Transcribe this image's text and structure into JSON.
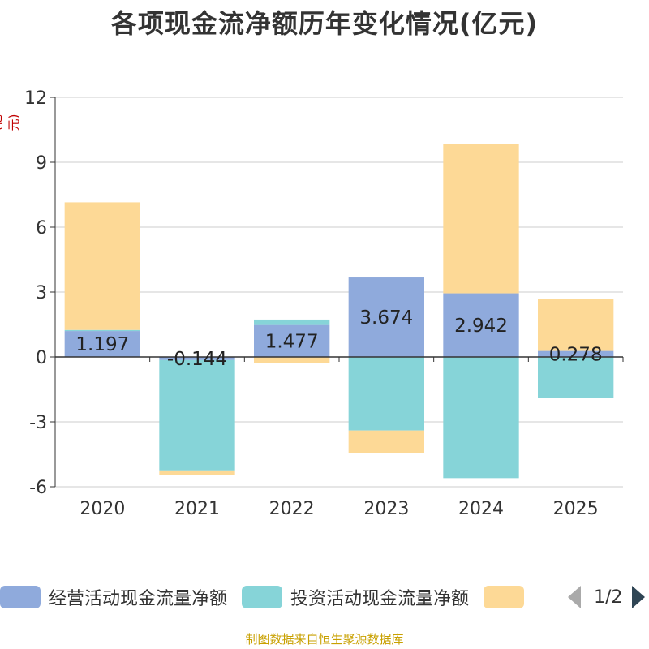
{
  "title": "各项现金流净额历年变化情况(亿元)",
  "y_unit": "(亿元)",
  "source": "制图数据来自恒生聚源数据库",
  "legend": {
    "items": [
      {
        "label": "经营活动现金流量净额",
        "color": "#8faadc"
      },
      {
        "label": "投资活动现金流量净额",
        "color": "#86d4d8"
      },
      {
        "label": "",
        "color": "#fdd996"
      }
    ],
    "page": "1/2"
  },
  "chart_data": {
    "type": "bar",
    "stacked": true,
    "categories": [
      "2020",
      "2021",
      "2022",
      "2023",
      "2024",
      "2025"
    ],
    "series": [
      {
        "name": "经营活动现金流量净额",
        "color": "#8faadc",
        "values": [
          1.197,
          -0.144,
          1.477,
          3.674,
          2.942,
          0.278
        ],
        "labels": [
          "1.197",
          "-0.144",
          "1.477",
          "3.674",
          "2.942",
          "0.278"
        ]
      },
      {
        "name": "投资活动现金流量净额",
        "color": "#86d4d8",
        "values": [
          0.05,
          -5.1,
          0.25,
          -3.4,
          -5.6,
          -1.9
        ]
      },
      {
        "name": "",
        "color": "#fdd996",
        "values": [
          5.9,
          -0.2,
          -0.3,
          -1.05,
          6.9,
          2.4
        ]
      }
    ],
    "ylim": [
      -6,
      12
    ],
    "yticks": [
      -6,
      -3,
      0,
      3,
      6,
      9,
      12
    ],
    "ytick_labels": [
      "-6",
      "-3",
      "0",
      "3",
      "6",
      "9",
      "12"
    ],
    "grid": true,
    "legend_position": "bottom"
  }
}
